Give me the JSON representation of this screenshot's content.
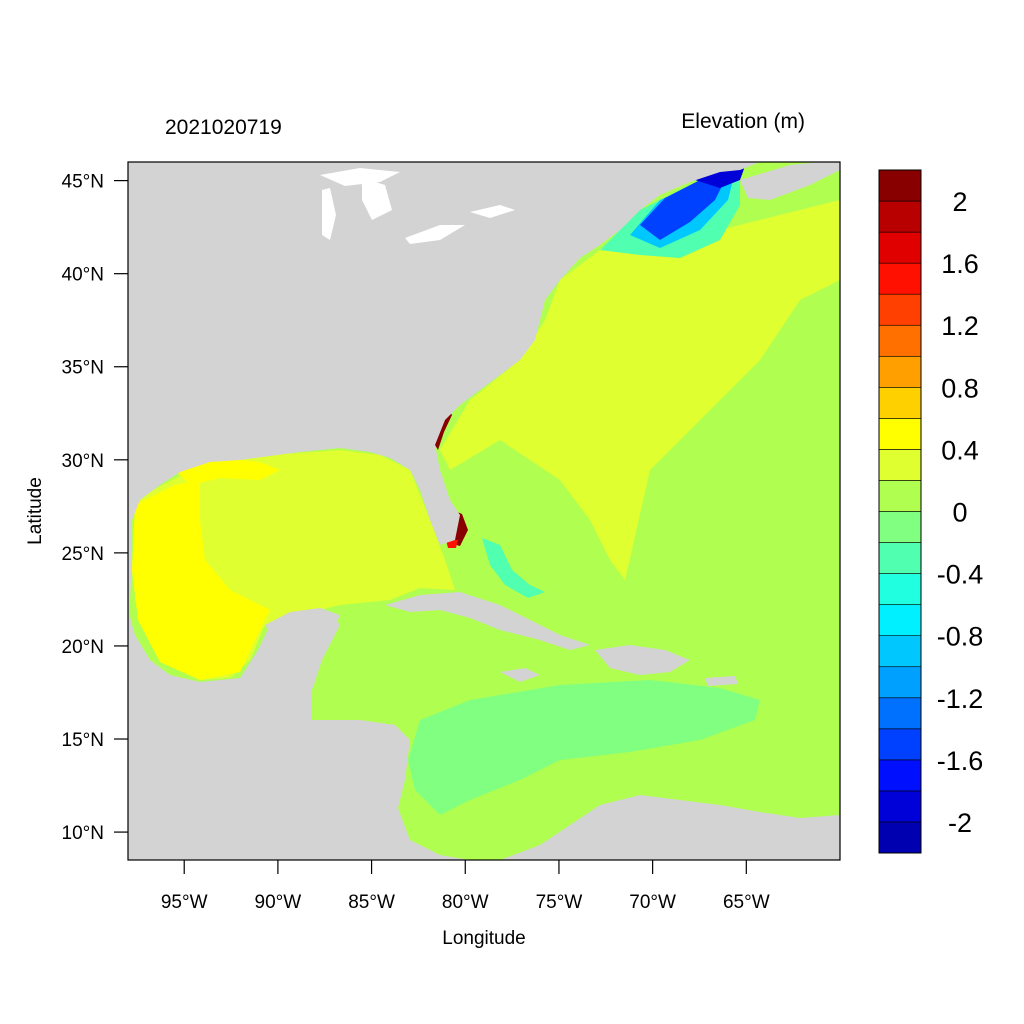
{
  "header": {
    "left_title": "2021020719",
    "right_title": "Elevation (m)"
  },
  "axes": {
    "xlabel": "Longitude",
    "ylabel": "Latitude",
    "x_range": [
      -98,
      -60
    ],
    "y_range": [
      8.5,
      46
    ],
    "x_ticks": [
      {
        "value": -95,
        "label": "95°W"
      },
      {
        "value": -90,
        "label": "90°W"
      },
      {
        "value": -85,
        "label": "85°W"
      },
      {
        "value": -80,
        "label": "80°W"
      },
      {
        "value": -75,
        "label": "75°W"
      },
      {
        "value": -70,
        "label": "70°W"
      },
      {
        "value": -65,
        "label": "65°W"
      }
    ],
    "y_ticks": [
      {
        "value": 45,
        "label": "45°N"
      },
      {
        "value": 40,
        "label": "40°N"
      },
      {
        "value": 35,
        "label": "35°N"
      },
      {
        "value": 30,
        "label": "30°N"
      },
      {
        "value": 25,
        "label": "25°N"
      },
      {
        "value": 20,
        "label": "20°N"
      },
      {
        "value": 15,
        "label": "15°N"
      },
      {
        "value": 10,
        "label": "10°N"
      }
    ]
  },
  "colorbar": {
    "colors": [
      "#0000b0",
      "#0000d8",
      "#0010ff",
      "#0040ff",
      "#0070ff",
      "#00a0ff",
      "#00c8ff",
      "#00f0ff",
      "#20ffe0",
      "#50ffb0",
      "#80ff80",
      "#b0ff50",
      "#e0ff30",
      "#ffff00",
      "#ffd000",
      "#ffa000",
      "#ff7000",
      "#ff4000",
      "#ff1000",
      "#e00000",
      "#b80000",
      "#880000"
    ],
    "labels": [
      "2",
      "1.6",
      "1.2",
      "0.8",
      "0.4",
      "0",
      "-0.4",
      "-0.8",
      "-1.2",
      "-1.6",
      "-2"
    ]
  },
  "colors": {
    "land": "#d3d3d3",
    "ocean_base": "#b0ff50",
    "shelf": "#e0ff30",
    "gulf": "#e0ff30",
    "western_gulf": "#ffff00",
    "caribbean_low": "#80ff80",
    "gulf_of_maine": "#0040ff",
    "florida_surge": "#880000"
  }
}
